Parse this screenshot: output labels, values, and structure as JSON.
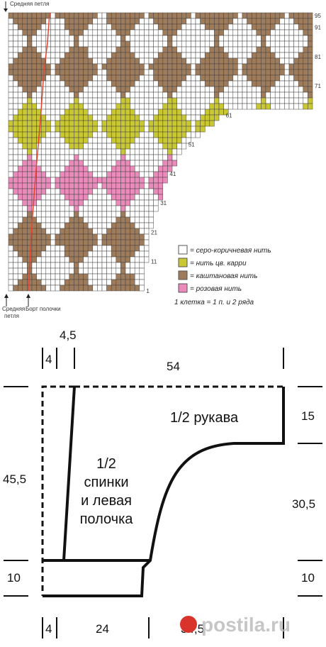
{
  "chart_header": "Средняя петля",
  "row_numbers": [
    95,
    91,
    81,
    71,
    61,
    51,
    41,
    31,
    21,
    11,
    1
  ],
  "legend": [
    "= серо-коричневая нить",
    "= нить цв. карри",
    "= каштановая нить",
    "= розовая нить",
    "1 клетка = 1 п. и 2 ряда"
  ],
  "bottom_labels": {
    "middle_stitch": [
      "Средняя",
      "петля"
    ],
    "placket": "Борт полочки"
  },
  "schematic": {
    "sleeve": "1/2 рукава",
    "body": [
      "1/2",
      "спинки",
      "и левая",
      "полочка"
    ],
    "top": {
      "small": "4,5",
      "left": "4",
      "width": "54"
    },
    "right": {
      "top": "15",
      "middle": "30,5",
      "bottom": "10"
    },
    "left": {
      "top": "45,5",
      "bottom": "10"
    },
    "bottom": {
      "left": "4",
      "middle": "24",
      "right": "34,5"
    }
  },
  "watermark": "postila.ru"
}
